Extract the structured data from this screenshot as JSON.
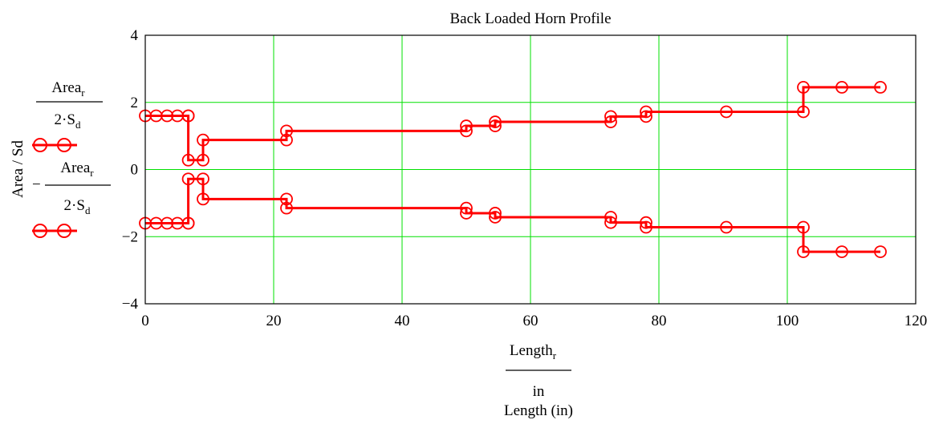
{
  "chart_data": {
    "type": "line",
    "title": "Back Loaded Horn Profile",
    "xlabel": "Length (in)",
    "ylabel": "Area / Sd",
    "x_expr": {
      "numerator": "Length",
      "numerator_sub": "r",
      "denominator": "in"
    },
    "legend": [
      {
        "sign": "",
        "numerator": "Area",
        "numerator_sub": "r",
        "denominator": "2·S",
        "denominator_sub": "d"
      },
      {
        "sign": "−",
        "numerator": "Area",
        "numerator_sub": "r",
        "denominator": "2·S",
        "denominator_sub": "d"
      }
    ],
    "xlim": [
      0,
      120
    ],
    "ylim": [
      -4,
      4
    ],
    "xticks": [
      0,
      20,
      40,
      60,
      80,
      100,
      120
    ],
    "yticks": [
      -4,
      -2,
      0,
      2,
      4
    ],
    "x_tick_labels": [
      "0",
      "20",
      "40",
      "60",
      "80",
      "100",
      "120"
    ],
    "y_tick_labels": [
      "−4",
      "−2",
      "0",
      "2",
      "4"
    ],
    "grid": true,
    "grid_color": "#00e000",
    "line_color": "#ff0000",
    "marker": "circle",
    "series": [
      {
        "points": [
          [
            0,
            1.6
          ],
          [
            1.7,
            1.6
          ],
          [
            3.4,
            1.6
          ],
          [
            5.0,
            1.6
          ],
          [
            6.7,
            1.6
          ],
          [
            6.7,
            1.6
          ],
          [
            6.7,
            0.28
          ],
          [
            9.0,
            0.28
          ],
          [
            9.0,
            0.88
          ],
          [
            22.0,
            0.88
          ],
          [
            22.0,
            1.15
          ],
          [
            50.0,
            1.15
          ],
          [
            50.0,
            1.3
          ],
          [
            54.5,
            1.3
          ],
          [
            54.5,
            1.42
          ],
          [
            72.5,
            1.42
          ],
          [
            72.5,
            1.58
          ],
          [
            78.0,
            1.58
          ],
          [
            78.0,
            1.72
          ],
          [
            90.5,
            1.72
          ],
          [
            102.5,
            1.72
          ],
          [
            102.5,
            2.45
          ],
          [
            108.5,
            2.45
          ],
          [
            114.5,
            2.45
          ]
        ]
      },
      {
        "points": [
          [
            0,
            -1.6
          ],
          [
            1.7,
            -1.6
          ],
          [
            3.4,
            -1.6
          ],
          [
            5.0,
            -1.6
          ],
          [
            6.7,
            -1.6
          ],
          [
            6.7,
            -1.6
          ],
          [
            6.7,
            -0.28
          ],
          [
            9.0,
            -0.28
          ],
          [
            9.0,
            -0.88
          ],
          [
            22.0,
            -0.88
          ],
          [
            22.0,
            -1.15
          ],
          [
            50.0,
            -1.15
          ],
          [
            50.0,
            -1.3
          ],
          [
            54.5,
            -1.3
          ],
          [
            54.5,
            -1.42
          ],
          [
            72.5,
            -1.42
          ],
          [
            72.5,
            -1.58
          ],
          [
            78.0,
            -1.58
          ],
          [
            78.0,
            -1.72
          ],
          [
            90.5,
            -1.72
          ],
          [
            102.5,
            -1.72
          ],
          [
            102.5,
            -2.45
          ],
          [
            108.5,
            -2.45
          ],
          [
            114.5,
            -2.45
          ]
        ]
      }
    ]
  }
}
